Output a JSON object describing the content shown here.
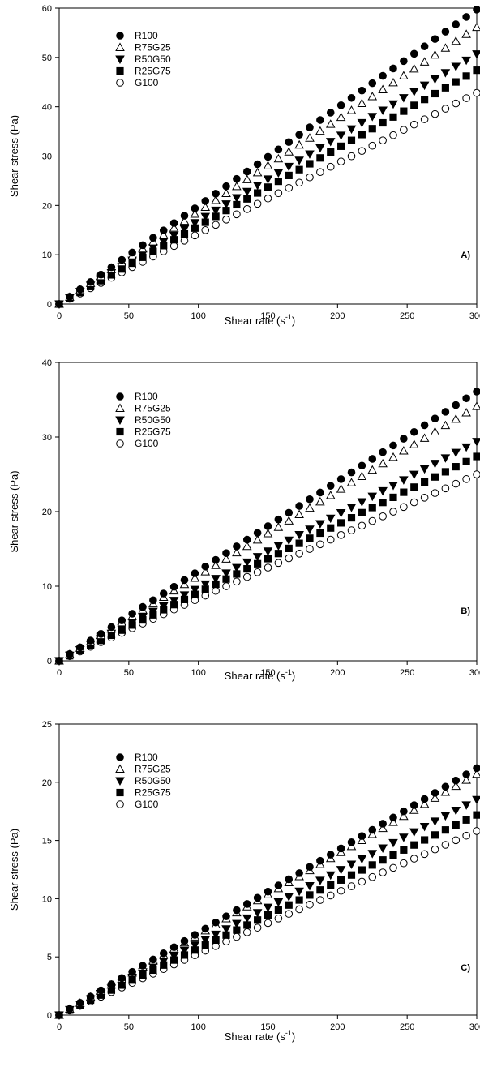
{
  "chart_data": [
    {
      "type": "scatter",
      "panel_label": "A)",
      "xlabel": "Shear rate (s",
      "xlabel_sup": "-1",
      "xlabel_end": ")",
      "ylabel": "Shear stress (Pa)",
      "xlim": [
        0,
        300
      ],
      "ylim": [
        0,
        60
      ],
      "xticks": [
        0,
        50,
        100,
        150,
        200,
        250,
        300
      ],
      "yticks": [
        0,
        10,
        20,
        30,
        40,
        50,
        60
      ],
      "x": {
        "start": 0,
        "end": 300,
        "step": 7.5
      },
      "legend_position": "top-left",
      "series": [
        {
          "name": "R100",
          "marker": "filled-circle",
          "slope": 0.199
        },
        {
          "name": "R75G25",
          "marker": "open-triangle",
          "slope": 0.187
        },
        {
          "name": "R50G50",
          "marker": "filled-triangle-down",
          "slope": 0.169
        },
        {
          "name": "R25G75",
          "marker": "filled-square",
          "slope": 0.158
        },
        {
          "name": "G100",
          "marker": "open-circle",
          "slope": 0.1427
        }
      ]
    },
    {
      "type": "scatter",
      "panel_label": "B)",
      "xlabel": "Shear rate (s",
      "xlabel_sup": "-1",
      "xlabel_end": ")",
      "ylabel": "Shear stress (Pa)",
      "xlim": [
        0,
        300
      ],
      "ylim": [
        0,
        40
      ],
      "xticks": [
        0,
        50,
        100,
        150,
        200,
        250,
        300
      ],
      "yticks": [
        0,
        10,
        20,
        30,
        40
      ],
      "x": {
        "start": 0,
        "end": 300,
        "step": 7.5
      },
      "legend_position": "top-left",
      "series": [
        {
          "name": "R100",
          "marker": "filled-circle",
          "slope": 0.1203
        },
        {
          "name": "R75G25",
          "marker": "open-triangle",
          "slope": 0.1137
        },
        {
          "name": "R50G50",
          "marker": "filled-triangle-down",
          "slope": 0.098
        },
        {
          "name": "R25G75",
          "marker": "filled-square",
          "slope": 0.0913
        },
        {
          "name": "G100",
          "marker": "open-circle",
          "slope": 0.0833
        }
      ]
    },
    {
      "type": "scatter",
      "panel_label": "C)",
      "xlabel": "Shear rate (s",
      "xlabel_sup": "-1",
      "xlabel_end": ")",
      "ylabel": "Shear stress (Pa)",
      "xlim": [
        0,
        300
      ],
      "ylim": [
        0,
        25
      ],
      "xticks": [
        0,
        50,
        100,
        150,
        200,
        250,
        300
      ],
      "yticks": [
        0,
        5,
        10,
        15,
        20,
        25
      ],
      "x": {
        "start": 0,
        "end": 300,
        "step": 7.5
      },
      "legend_position": "top-left",
      "series": [
        {
          "name": "R100",
          "marker": "filled-circle",
          "slope": 0.0707
        },
        {
          "name": "R75G25",
          "marker": "open-triangle",
          "slope": 0.069
        },
        {
          "name": "R50G50",
          "marker": "filled-triangle-down",
          "slope": 0.0617
        },
        {
          "name": "R25G75",
          "marker": "filled-square",
          "slope": 0.0573
        },
        {
          "name": "G100",
          "marker": "open-circle",
          "slope": 0.0527
        }
      ]
    }
  ]
}
